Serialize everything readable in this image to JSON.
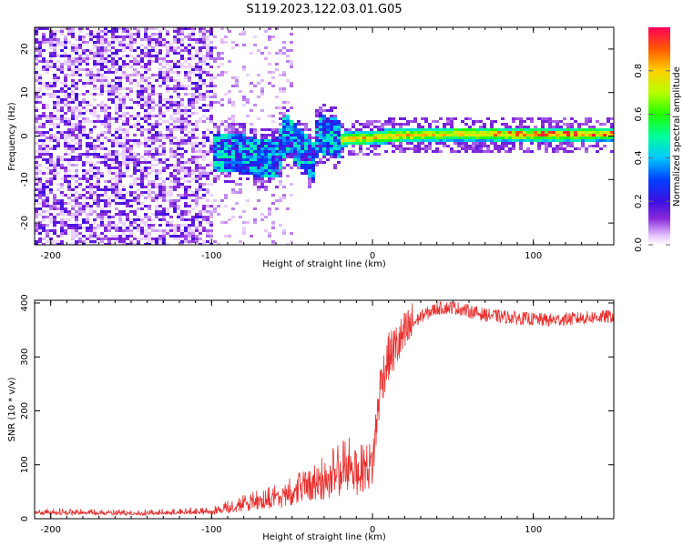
{
  "title": "S119.2023.122.03.01.G05",
  "chart_data": [
    {
      "type": "heatmap",
      "xlabel": "Height of straight line (km)",
      "ylabel": "Frequency (Hz)",
      "xlim": [
        -210,
        150
      ],
      "ylim": [
        -25,
        25
      ],
      "xticks": [
        -200,
        -100,
        0,
        100
      ],
      "yticks": [
        -20,
        -10,
        0,
        10,
        20
      ],
      "colorbar": {
        "label": "Normalized spectral amplitude",
        "range": [
          0,
          1
        ],
        "ticks": [
          0.0,
          0.2,
          0.4,
          0.6,
          0.8
        ],
        "colormap": "rainbow-white-to-red"
      },
      "ridge": [
        {
          "x": -90,
          "y": -3.5
        },
        {
          "x": -80,
          "y": -4.0
        },
        {
          "x": -70,
          "y": -5.0
        },
        {
          "x": -60,
          "y": -4.5
        },
        {
          "x": -55,
          "y": 1.0
        },
        {
          "x": -45,
          "y": -3.0
        },
        {
          "x": -38,
          "y": -5.5
        },
        {
          "x": -35,
          "y": 1.0
        },
        {
          "x": -20,
          "y": -0.5
        },
        {
          "x": 0,
          "y": 0.0
        },
        {
          "x": 20,
          "y": 0.5
        },
        {
          "x": 50,
          "y": 0.8
        },
        {
          "x": 100,
          "y": 0.6
        },
        {
          "x": 150,
          "y": 0.8
        }
      ],
      "grid": false,
      "legend": "none"
    },
    {
      "type": "line",
      "xlabel": "Height of straight line (km)",
      "ylabel": "SNR (10 * v/v)",
      "xlim": [
        -210,
        150
      ],
      "ylim": [
        0,
        405
      ],
      "xticks": [
        -200,
        -100,
        0,
        100
      ],
      "yticks": [
        0,
        100,
        200,
        300,
        400
      ],
      "color": "#e8302e",
      "series": [
        {
          "x": [
            -210,
            -180,
            -150,
            -120,
            -100,
            -90,
            -80,
            -70,
            -60,
            -50,
            -40,
            -30,
            -20,
            -15,
            -10,
            -5,
            0,
            5,
            10,
            15,
            20,
            25,
            30,
            40,
            50,
            60,
            70,
            80,
            90,
            100,
            110,
            120,
            130,
            140,
            150
          ],
          "values": [
            10,
            10,
            9,
            10,
            12,
            18,
            25,
            30,
            35,
            42,
            55,
            62,
            75,
            85,
            88,
            95,
            100,
            250,
            300,
            320,
            340,
            360,
            375,
            390,
            392,
            385,
            378,
            375,
            372,
            370,
            368,
            370,
            372,
            374,
            375
          ]
        }
      ],
      "grid": false,
      "legend": "none"
    }
  ]
}
